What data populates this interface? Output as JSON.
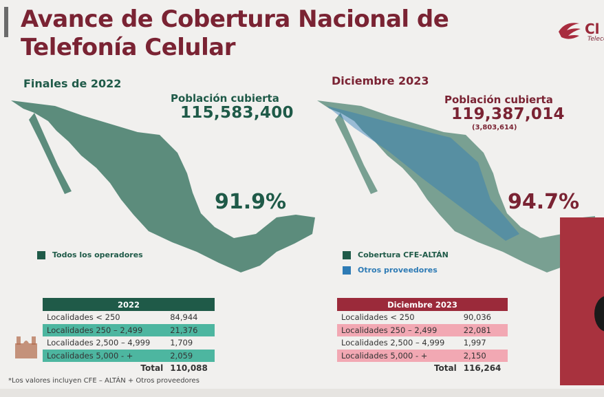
{
  "title": {
    "line1": "Avance de Cobertura Nacional de",
    "line2": "Telefonía Celular"
  },
  "logo": {
    "text": "Cl",
    "sub": "Teleco"
  },
  "panel_2022": {
    "heading": "Finales de 2022",
    "population_label": "Población cubierta",
    "population_value": "115,583,400",
    "percent": "91.9%",
    "legend": [
      {
        "label": "Todos los operadores",
        "color": "#1f5a48"
      }
    ]
  },
  "panel_2023": {
    "heading": "Diciembre 2023",
    "population_label": "Población cubierta",
    "population_value": "119,387,014",
    "population_sub": "(3,803,614)",
    "percent": "94.7%",
    "legend": [
      {
        "label": "Cobertura CFE-ALTÁN",
        "color": "#1f5a48"
      },
      {
        "label": "Otros proveedores",
        "color": "#2e7bb5"
      }
    ]
  },
  "table_2022": {
    "header": "2022",
    "rows": [
      {
        "label": "Localidades < 250",
        "value": "84,944"
      },
      {
        "label": "Localidades 250 – 2,499",
        "value": "21,376"
      },
      {
        "label": "Localidades 2,500 – 4,999",
        "value": "1,709"
      },
      {
        "label": "Localidades 5,000 - +",
        "value": "2,059"
      }
    ],
    "total_label": "Total",
    "total_value": "110,088"
  },
  "table_2023": {
    "header": "Diciembre 2023",
    "rows": [
      {
        "label": "Localidades < 250",
        "value": "90,036"
      },
      {
        "label": "Localidades 250 – 2,499",
        "value": "22,081"
      },
      {
        "label": "Localidades 2,500 – 4,999",
        "value": "1,997"
      },
      {
        "label": "Localidades 5,000 - +",
        "value": "2,150"
      }
    ],
    "total_label": "Total",
    "total_value": "116,264"
  },
  "footnote": "*Los valores incluyen CFE – ALTÁN + Otros proveedores",
  "colors": {
    "brand": "#7a2333",
    "green": "#1f5a48",
    "teal": "#4db6a0",
    "pink": "#f2a8b3",
    "blue": "#2e7bb5"
  }
}
